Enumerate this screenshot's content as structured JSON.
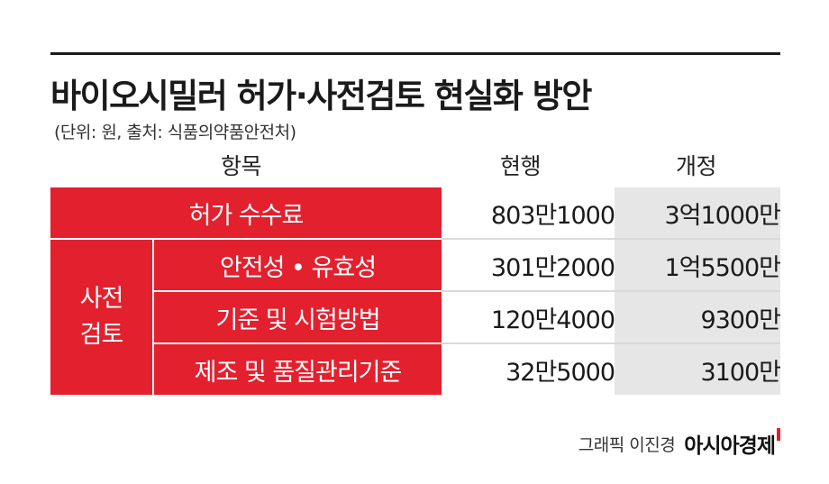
{
  "title": "바이오시밀러 허가·사전검토 현실화 방안",
  "subtitle": "(단위: 원, 출처: 식품의약품안전처)",
  "headers": {
    "item": "항목",
    "current": "현행",
    "revised": "개정"
  },
  "rows": [
    {
      "label": "허가 수수료",
      "current": "803만1000",
      "revised": "3억1000만"
    },
    {
      "label": "안전성 • 유효성",
      "current": "301만2000",
      "revised": "1억5500만"
    },
    {
      "label": "기준 및 시험방법",
      "current": "120만4000",
      "revised": "9300만"
    },
    {
      "label": "제조 및 품질관리기준",
      "current": "32만5000",
      "revised": "3100만"
    }
  ],
  "group": {
    "line1": "사전",
    "line2": "검토"
  },
  "credit": "그래픽 이진경",
  "brand": "아시아경제",
  "colors": {
    "accent": "#e3202e",
    "revised_bg": "#e6e6e6"
  }
}
